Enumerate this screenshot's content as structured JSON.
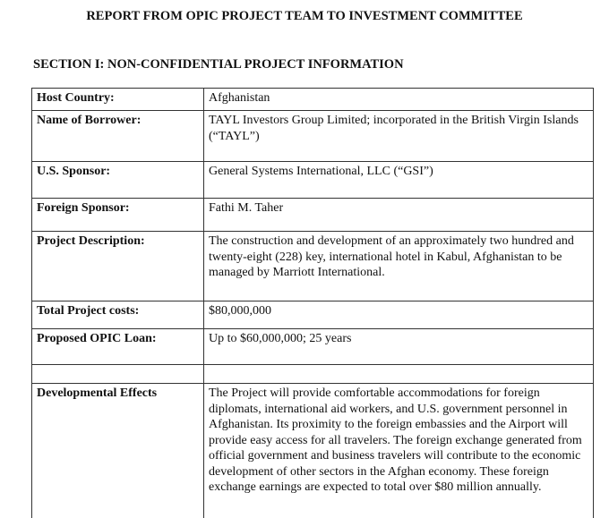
{
  "title": "REPORT FROM OPIC PROJECT TEAM TO INVESTMENT COMMITTEE",
  "section": "SECTION I:  NON-CONFIDENTIAL PROJECT INFORMATION",
  "rows": [
    {
      "label": "Host Country:",
      "value": "Afghanistan"
    },
    {
      "label": "Name of Borrower:",
      "value": "TAYL Investors Group Limited; incorporated in the British Virgin Islands (“TAYL”)"
    },
    {
      "label": "U.S. Sponsor:",
      "value": "General Systems International, LLC (“GSI”)"
    },
    {
      "label": "Foreign Sponsor:",
      "value": "Fathi M. Taher"
    },
    {
      "label": "Project Description:",
      "value": "The construction and development of an approximately two hundred and twenty-eight (228) key, international hotel in Kabul, Afghanistan to be managed by Marriott International."
    },
    {
      "label": "Total Project costs:",
      "value": "$80,000,000"
    },
    {
      "label": "Proposed OPIC Loan:",
      "value": "Up to $60,000,000;  25 years"
    },
    {
      "label": "",
      "value": ""
    },
    {
      "label": "Developmental Effects",
      "value": "The Project will provide comfortable accommodations for foreign diplomats, international aid workers, and U.S. government personnel in Afghanistan.  Its proximity to the foreign embassies and the Airport will provide easy access for all travelers.  The foreign exchange generated from official government and business travelers will contribute to the economic development of other sectors in the Afghan economy.  These foreign exchange earnings are expected to total over $80 million annually."
    }
  ]
}
